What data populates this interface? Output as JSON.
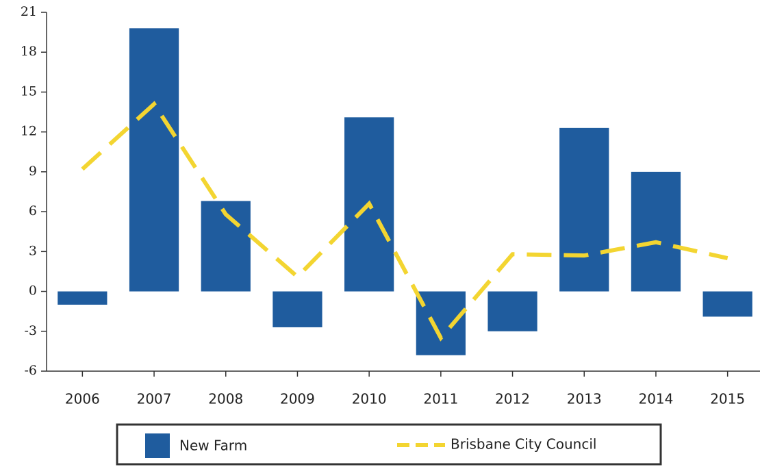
{
  "chart_data": {
    "type": "bar",
    "categories": [
      "2006",
      "2007",
      "2008",
      "2009",
      "2010",
      "2011",
      "2012",
      "2013",
      "2014",
      "2015"
    ],
    "series": [
      {
        "name": "New Farm",
        "type": "bar",
        "color": "#1f5c9e",
        "values": [
          -1.0,
          19.8,
          6.8,
          -2.7,
          13.1,
          -4.8,
          -3.0,
          12.3,
          9.0,
          -1.9
        ]
      },
      {
        "name": "Brisbane City Council",
        "type": "line",
        "color": "#f3d531",
        "values": [
          9.2,
          14.1,
          5.8,
          1.1,
          6.6,
          -3.5,
          2.8,
          2.7,
          3.7,
          2.5
        ]
      }
    ],
    "ylim": [
      -6,
      21
    ],
    "yticks": [
      -6,
      -3,
      0,
      3,
      6,
      9,
      12,
      15,
      18,
      21
    ],
    "grid": false,
    "legend": "bottom"
  }
}
